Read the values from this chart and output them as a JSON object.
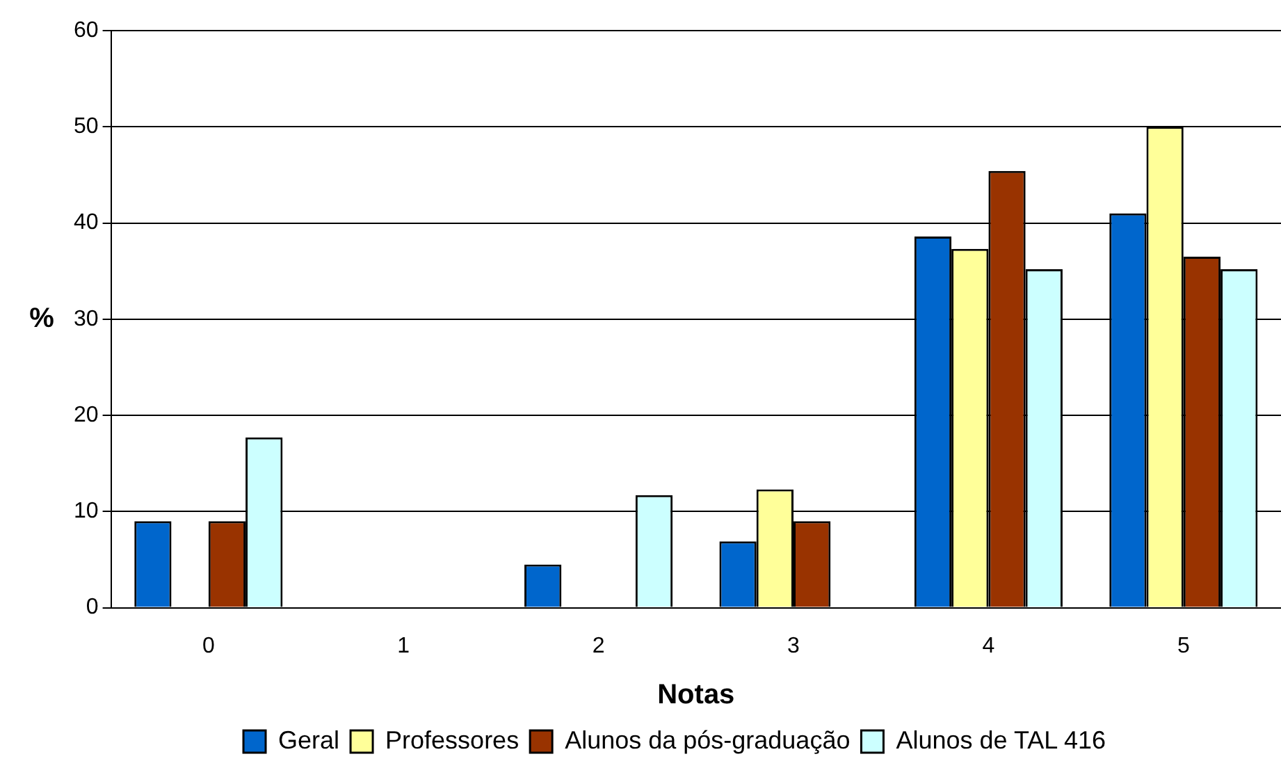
{
  "chart_data": {
    "type": "bar",
    "xlabel": "Notas",
    "ylabel": "%",
    "categories": [
      "0",
      "1",
      "2",
      "3",
      "4",
      "5"
    ],
    "series": [
      {
        "name": "Geral",
        "color": "#0066cc",
        "values": [
          9.0,
          0,
          4.5,
          6.9,
          38.6,
          41.0
        ]
      },
      {
        "name": "Professores",
        "color": "#ffff99",
        "values": [
          0,
          0,
          0,
          12.3,
          37.3,
          50.0
        ]
      },
      {
        "name": "Alunos da pós-graduação",
        "color": "#993300",
        "values": [
          9.0,
          0,
          0,
          9.0,
          45.4,
          36.5
        ]
      },
      {
        "name": "Alunos de TAL 416",
        "color": "#ccffff",
        "values": [
          17.7,
          0,
          11.7,
          0,
          35.2,
          35.2
        ]
      }
    ],
    "ylim": [
      0,
      60
    ],
    "yticks": [
      0,
      10,
      20,
      30,
      40,
      50,
      60
    ],
    "grid": "y",
    "legend": "bottom"
  }
}
